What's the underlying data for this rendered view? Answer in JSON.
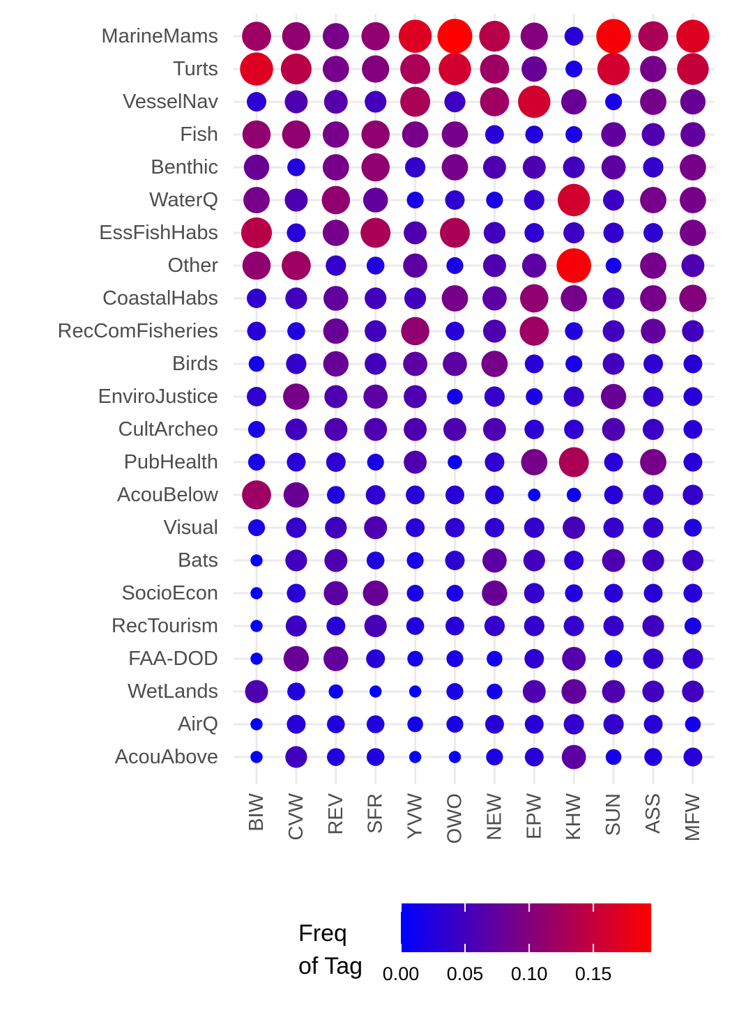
{
  "chart_data": {
    "type": "scatter",
    "subtype": "bubble-matrix",
    "title": "",
    "xlabel": "",
    "ylabel": "",
    "columns": [
      "BIW",
      "CVW",
      "REV",
      "SFR",
      "YVW",
      "OWO",
      "NEW",
      "EPW",
      "KHW",
      "SUN",
      "ASS",
      "MFW"
    ],
    "rows": [
      "MarineMams",
      "Turts",
      "VesselNav",
      "Fish",
      "Benthic",
      "WaterQ",
      "EssFishHabs",
      "Other",
      "CoastalHabs",
      "RecComFisheries",
      "Birds",
      "EnviroJustice",
      "CultArcheo",
      "PubHealth",
      "AcouBelow",
      "Visual",
      "Bats",
      "SocioEcon",
      "RecTourism",
      "FAA-DOD",
      "WetLands",
      "AirQ",
      "AcouAbove"
    ],
    "values": [
      [
        0.12,
        0.11,
        0.09,
        0.11,
        0.17,
        0.195,
        0.14,
        0.1,
        0.03,
        0.19,
        0.13,
        0.17
      ],
      [
        0.17,
        0.14,
        0.09,
        0.1,
        0.13,
        0.16,
        0.12,
        0.08,
        0.02,
        0.16,
        0.09,
        0.15
      ],
      [
        0.035,
        0.06,
        0.065,
        0.05,
        0.13,
        0.045,
        0.12,
        0.16,
        0.08,
        0.02,
        0.09,
        0.08
      ],
      [
        0.11,
        0.11,
        0.09,
        0.11,
        0.09,
        0.09,
        0.03,
        0.025,
        0.02,
        0.075,
        0.06,
        0.075
      ],
      [
        0.08,
        0.025,
        0.09,
        0.11,
        0.04,
        0.09,
        0.06,
        0.06,
        0.05,
        0.07,
        0.04,
        0.09
      ],
      [
        0.09,
        0.06,
        0.11,
        0.075,
        0.02,
        0.035,
        0.02,
        0.04,
        0.16,
        0.045,
        0.09,
        0.09
      ],
      [
        0.14,
        0.03,
        0.09,
        0.13,
        0.06,
        0.13,
        0.05,
        0.035,
        0.045,
        0.04,
        0.035,
        0.09
      ],
      [
        0.11,
        0.12,
        0.04,
        0.025,
        0.07,
        0.02,
        0.06,
        0.07,
        0.19,
        0.015,
        0.09,
        0.06
      ],
      [
        0.035,
        0.05,
        0.075,
        0.05,
        0.05,
        0.09,
        0.07,
        0.11,
        0.09,
        0.05,
        0.09,
        0.1
      ],
      [
        0.03,
        0.025,
        0.08,
        0.05,
        0.11,
        0.03,
        0.06,
        0.12,
        0.025,
        0.05,
        0.075,
        0.05
      ],
      [
        0.015,
        0.04,
        0.08,
        0.05,
        0.07,
        0.07,
        0.09,
        0.03,
        0.02,
        0.05,
        0.035,
        0.03
      ],
      [
        0.035,
        0.09,
        0.06,
        0.07,
        0.06,
        0.015,
        0.04,
        0.02,
        0.04,
        0.08,
        0.04,
        0.03
      ],
      [
        0.02,
        0.05,
        0.06,
        0.06,
        0.06,
        0.06,
        0.06,
        0.035,
        0.035,
        0.06,
        0.045,
        0.03
      ],
      [
        0.02,
        0.03,
        0.035,
        0.02,
        0.06,
        0.01,
        0.035,
        0.09,
        0.13,
        0.03,
        0.09,
        0.03
      ],
      [
        0.12,
        0.08,
        0.025,
        0.035,
        0.03,
        0.03,
        0.03,
        0.005,
        0.01,
        0.03,
        0.04,
        0.04
      ],
      [
        0.02,
        0.04,
        0.05,
        0.06,
        0.03,
        0.035,
        0.035,
        0.04,
        0.055,
        0.04,
        0.04,
        0.025
      ],
      [
        0.004,
        0.05,
        0.06,
        0.025,
        0.02,
        0.035,
        0.07,
        0.05,
        0.035,
        0.06,
        0.05,
        0.045
      ],
      [
        0.004,
        0.03,
        0.07,
        0.08,
        0.02,
        0.02,
        0.08,
        0.04,
        0.025,
        0.03,
        0.03,
        0.03
      ],
      [
        0.004,
        0.045,
        0.03,
        0.055,
        0.025,
        0.03,
        0.04,
        0.04,
        0.04,
        0.04,
        0.05,
        0.02
      ],
      [
        0.004,
        0.08,
        0.075,
        0.03,
        0.015,
        0.02,
        0.015,
        0.035,
        0.065,
        0.025,
        0.04,
        0.04
      ],
      [
        0.06,
        0.025,
        0.01,
        0.004,
        0.004,
        0.02,
        0.015,
        0.06,
        0.075,
        0.06,
        0.05,
        0.05
      ],
      [
        0.004,
        0.03,
        0.025,
        0.025,
        0.015,
        0.02,
        0.03,
        0.03,
        0.04,
        0.04,
        0.03,
        0.015
      ],
      [
        0.004,
        0.05,
        0.025,
        0.025,
        0.004,
        0.004,
        0.02,
        0.03,
        0.07,
        0.015,
        0.025,
        0.03
      ]
    ],
    "color_scale": {
      "low": "#0000ff",
      "high": "#ff0000",
      "domain": [
        0,
        0.195
      ]
    },
    "grid": true,
    "legend": {
      "position": "bottom",
      "title_lines": [
        "Freq",
        "of Tag"
      ],
      "ticks": [
        0.0,
        0.05,
        0.1,
        0.15
      ],
      "tick_labels": [
        "0.00",
        "0.05",
        "0.10",
        "0.15"
      ]
    }
  }
}
